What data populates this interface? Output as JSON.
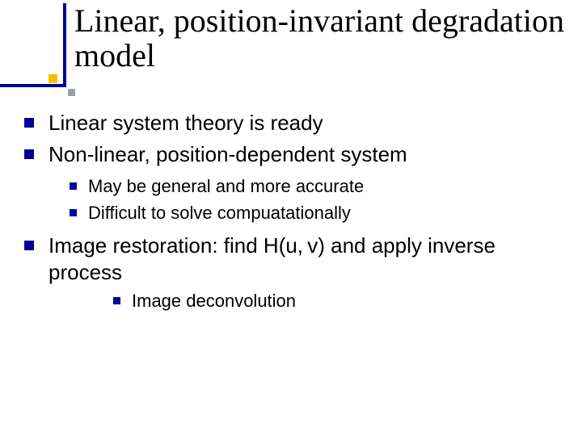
{
  "colors": {
    "accent": "#000099",
    "accent_square_yellow": "#f2c200",
    "accent_square_gray": "#9aa0a6",
    "text": "#000000",
    "background": "#ffffff"
  },
  "typography": {
    "title_family": "Times New Roman",
    "title_fontsize_pt": 40,
    "body_family": "Verdana",
    "body_fontsize_pt_lvl1": 26,
    "body_fontsize_pt_lvl2": 22
  },
  "title": "Linear, position-invariant degradation model",
  "bullets": {
    "b1": "Linear system theory is ready",
    "b2": "Non-linear, position-dependent system",
    "b2_sub": {
      "s1": "May be general and more accurate",
      "s2": "Difficult to solve compuatationally"
    },
    "b3": "Image restoration: find H(u, v) and apply inverse process",
    "b3_sub": {
      "s1": "Image deconvolution"
    }
  }
}
